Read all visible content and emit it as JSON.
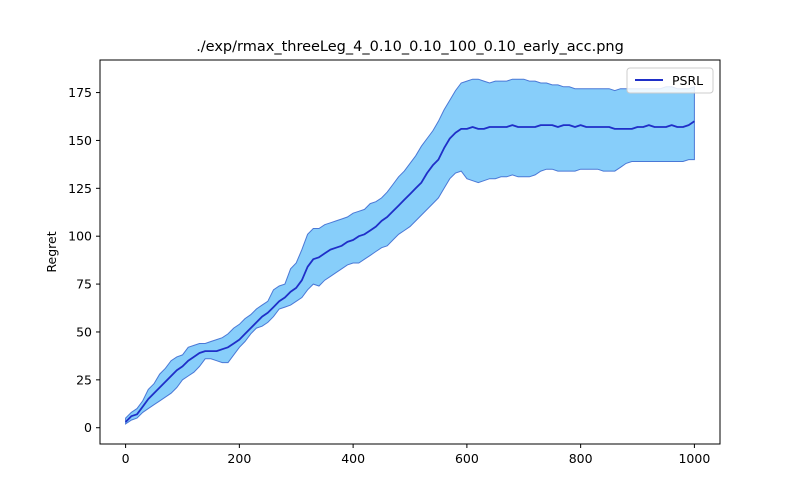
{
  "chart_data": {
    "type": "line",
    "title": "./exp/rmax_threeLeg_4_0.10_0.10_100_0.10_early_acc.png",
    "xlabel": "",
    "ylabel": "Regret",
    "xlim": [
      -45,
      1045
    ],
    "ylim": [
      -8.5,
      192
    ],
    "xticks": [
      0,
      200,
      400,
      600,
      800,
      1000
    ],
    "yticks": [
      0,
      25,
      50,
      75,
      100,
      125,
      150,
      175
    ],
    "legend": {
      "position": "top-right",
      "entries": [
        "PSRL"
      ]
    },
    "colors": {
      "line": "#1f2fc8",
      "band_fill": "#87cefa",
      "band_edge": "#4a78d6"
    },
    "series": [
      {
        "name": "PSRL",
        "x": [
          0,
          10,
          20,
          30,
          40,
          50,
          60,
          70,
          80,
          90,
          100,
          110,
          120,
          130,
          140,
          150,
          160,
          170,
          180,
          190,
          200,
          210,
          220,
          230,
          240,
          250,
          260,
          270,
          280,
          290,
          300,
          310,
          320,
          330,
          340,
          350,
          360,
          370,
          380,
          390,
          400,
          410,
          420,
          430,
          440,
          450,
          460,
          470,
          480,
          490,
          500,
          510,
          520,
          530,
          540,
          550,
          560,
          570,
          580,
          590,
          600,
          610,
          620,
          630,
          640,
          650,
          660,
          670,
          680,
          690,
          700,
          710,
          720,
          730,
          740,
          750,
          760,
          770,
          780,
          790,
          800,
          810,
          820,
          830,
          840,
          850,
          860,
          870,
          880,
          890,
          900,
          910,
          920,
          930,
          940,
          950,
          960,
          970,
          980,
          990,
          1000
        ],
        "y": [
          3,
          6,
          7,
          11,
          15,
          18,
          21,
          24,
          27,
          30,
          32,
          35,
          37,
          39,
          40,
          40,
          40,
          41,
          42,
          44,
          46,
          49,
          52,
          55,
          58,
          60,
          63,
          66,
          68,
          71,
          73,
          77,
          84,
          88,
          89,
          91,
          93,
          94,
          95,
          97,
          98,
          100,
          101,
          103,
          105,
          108,
          110,
          113,
          116,
          119,
          122,
          125,
          128,
          133,
          137,
          140,
          146,
          151,
          154,
          156,
          156,
          157,
          156,
          156,
          157,
          157,
          157,
          157,
          158,
          157,
          157,
          157,
          157,
          158,
          158,
          158,
          157,
          158,
          158,
          157,
          158,
          157,
          157,
          157,
          157,
          157,
          156,
          156,
          156,
          156,
          157,
          157,
          158,
          157,
          157,
          157,
          158,
          157,
          157,
          158,
          160
        ],
        "y_lower": [
          2,
          4,
          5,
          8,
          10,
          12,
          14,
          16,
          18,
          21,
          25,
          27,
          29,
          32,
          36,
          36,
          35,
          34,
          34,
          38,
          42,
          45,
          49,
          52,
          53,
          55,
          58,
          62,
          63,
          64,
          66,
          68,
          72,
          75,
          74,
          77,
          79,
          81,
          83,
          85,
          86,
          86,
          88,
          90,
          92,
          94,
          95,
          98,
          101,
          103,
          105,
          108,
          111,
          114,
          117,
          120,
          125,
          130,
          133,
          134,
          130,
          129,
          128,
          129,
          130,
          130,
          131,
          131,
          132,
          131,
          131,
          131,
          132,
          134,
          135,
          135,
          134,
          134,
          134,
          134,
          135,
          135,
          135,
          135,
          134,
          134,
          134,
          136,
          138,
          139,
          139,
          139,
          139,
          139,
          139,
          139,
          139,
          139,
          139,
          140,
          140
        ],
        "y_upper": [
          5,
          8,
          10,
          14,
          20,
          23,
          28,
          31,
          35,
          37,
          38,
          42,
          43,
          44,
          44,
          45,
          46,
          47,
          49,
          52,
          54,
          57,
          59,
          62,
          64,
          66,
          72,
          74,
          75,
          83,
          86,
          93,
          101,
          104,
          104,
          106,
          107,
          108,
          109,
          110,
          112,
          113,
          114,
          117,
          118,
          120,
          123,
          127,
          131,
          134,
          138,
          142,
          147,
          151,
          155,
          160,
          166,
          171,
          176,
          180,
          181,
          182,
          182,
          181,
          180,
          181,
          181,
          181,
          182,
          182,
          182,
          181,
          181,
          180,
          180,
          179,
          179,
          178,
          178,
          177,
          177,
          177,
          177,
          177,
          177,
          177,
          176,
          177,
          177,
          177,
          177,
          177,
          177,
          177,
          177,
          178,
          178,
          177,
          177,
          177,
          178
        ]
      }
    ]
  }
}
